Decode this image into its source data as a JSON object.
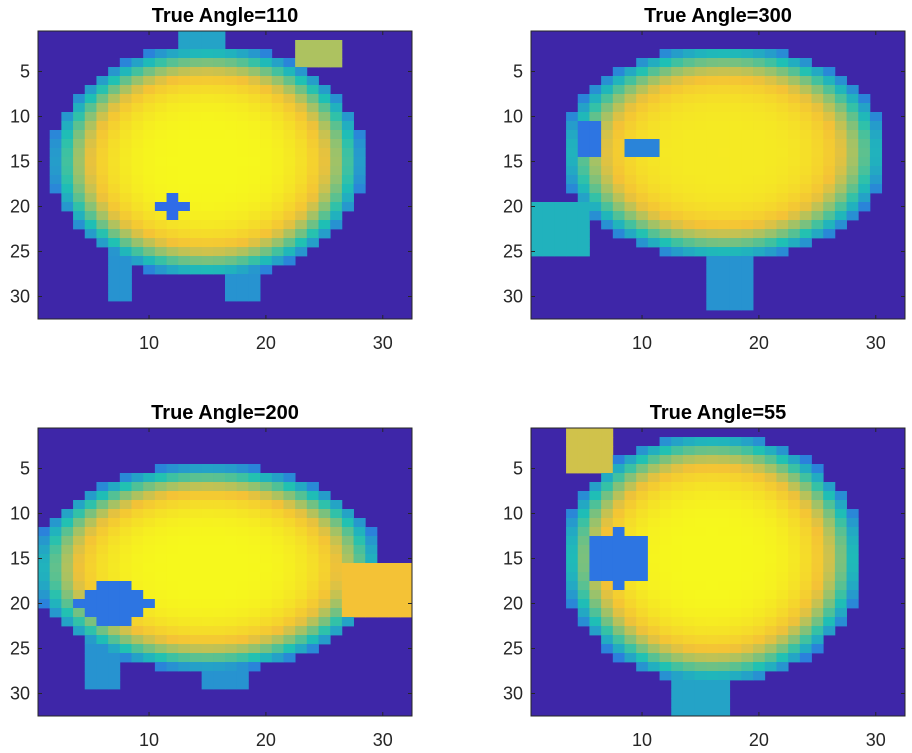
{
  "chart_data": [
    {
      "type": "heatmap",
      "title": "True Angle=110",
      "shape": "pig-facing-down",
      "xlim": [
        0.5,
        32.5
      ],
      "ylim": [
        0.5,
        32.5
      ],
      "xticks": [
        10,
        20,
        30
      ],
      "yticks": [
        5,
        10,
        15,
        20,
        25,
        30
      ],
      "y_reversed": true,
      "colormap": "parula",
      "grid": false,
      "legend": "none"
    },
    {
      "type": "heatmap",
      "title": "True Angle=300",
      "shape": "pig-facing-left",
      "xlim": [
        0.5,
        32.5
      ],
      "ylim": [
        0.5,
        32.5
      ],
      "xticks": [
        10,
        20,
        30
      ],
      "yticks": [
        5,
        10,
        15,
        20,
        25,
        30
      ],
      "y_reversed": true,
      "colormap": "parula",
      "grid": false,
      "legend": "none"
    },
    {
      "type": "heatmap",
      "title": "True Angle=200",
      "shape": "pig-facing-right",
      "xlim": [
        0.5,
        32.5
      ],
      "ylim": [
        0.5,
        32.5
      ],
      "xticks": [
        10,
        20,
        30
      ],
      "yticks": [
        5,
        10,
        15,
        20,
        25,
        30
      ],
      "y_reversed": true,
      "colormap": "parula",
      "grid": false,
      "legend": "none"
    },
    {
      "type": "heatmap",
      "title": "True Angle=55",
      "shape": "pig-facing-viewer",
      "xlim": [
        0.5,
        32.5
      ],
      "ylim": [
        0.5,
        32.5
      ],
      "xticks": [
        10,
        20,
        30
      ],
      "yticks": [
        5,
        10,
        15,
        20,
        25,
        30
      ],
      "y_reversed": true,
      "colormap": "parula",
      "grid": false,
      "legend": "none"
    }
  ],
  "colors": {
    "background": "#3e26a8",
    "low": "#2f6ce8",
    "mid": "#1ec1b4",
    "high": "#f4c236",
    "peak": "#f6f81c"
  }
}
